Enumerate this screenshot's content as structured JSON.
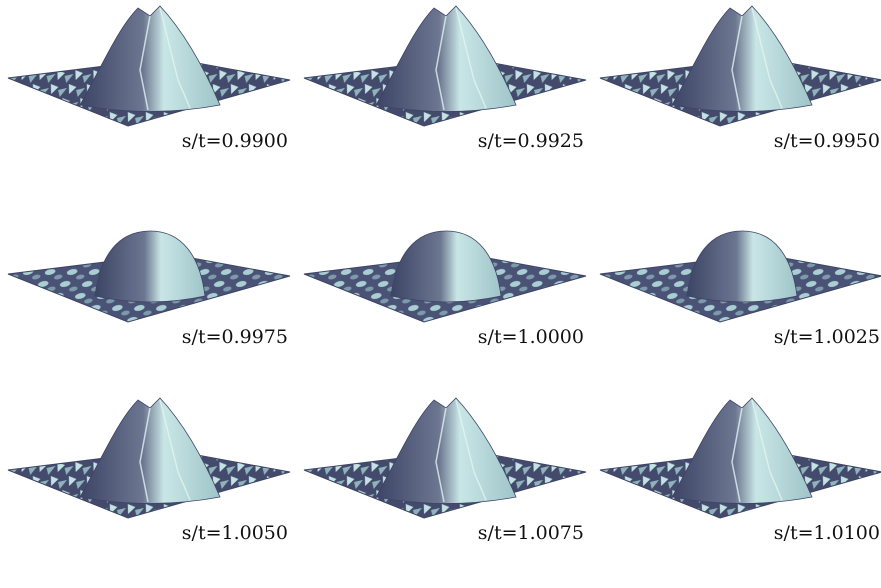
{
  "panels": [
    {
      "label": "s/t=0.9900"
    },
    {
      "label": "s/t=0.9925"
    },
    {
      "label": "s/t=0.9950"
    },
    {
      "label": "s/t=0.9975"
    },
    {
      "label": "s/t=1.0000"
    },
    {
      "label": "s/t=1.0025"
    },
    {
      "label": "s/t=1.0050"
    },
    {
      "label": "s/t=1.0075"
    },
    {
      "label": "s/t=1.0100"
    }
  ]
}
